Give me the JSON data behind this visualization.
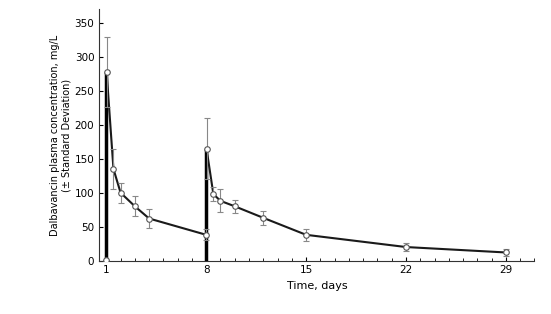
{
  "title": "",
  "xlabel": "Time, days",
  "ylabel": "Dalbavancin plasma concentration, mg/L\n(± Standard Deviation)",
  "xlim": [
    0.5,
    31
  ],
  "ylim": [
    0,
    370
  ],
  "yticks": [
    0,
    50,
    100,
    150,
    200,
    250,
    300,
    350
  ],
  "xticks": [
    1,
    8,
    15,
    22,
    29
  ],
  "background_color": "#ffffff",
  "line_color": "#1a1a1a",
  "marker_color": "#ffffff",
  "marker_edge_color": "#555555",
  "errorbar_color": "#888888",
  "time_points": [
    1.0,
    1.02,
    1.5,
    2.0,
    3.0,
    4.0,
    8.0,
    8.02,
    8.5,
    9.0,
    10.0,
    12.0,
    15.0,
    22.0,
    29.0
  ],
  "mean_values": [
    0.5,
    278,
    135,
    100,
    80,
    62,
    38,
    165,
    98,
    88,
    80,
    63,
    38,
    20,
    12
  ],
  "sd_upper": [
    0.5,
    330,
    165,
    115,
    95,
    76,
    46,
    210,
    108,
    105,
    90,
    73,
    47,
    26,
    17
  ],
  "sd_lower": [
    0.5,
    226,
    105,
    85,
    65,
    48,
    30,
    120,
    88,
    71,
    70,
    53,
    29,
    14,
    7
  ],
  "spike1_x": 1.01,
  "spike1_y0": 0,
  "spike1_y1": 278,
  "spike2_x": 8.01,
  "spike2_y0": 0,
  "spike2_y1": 165
}
